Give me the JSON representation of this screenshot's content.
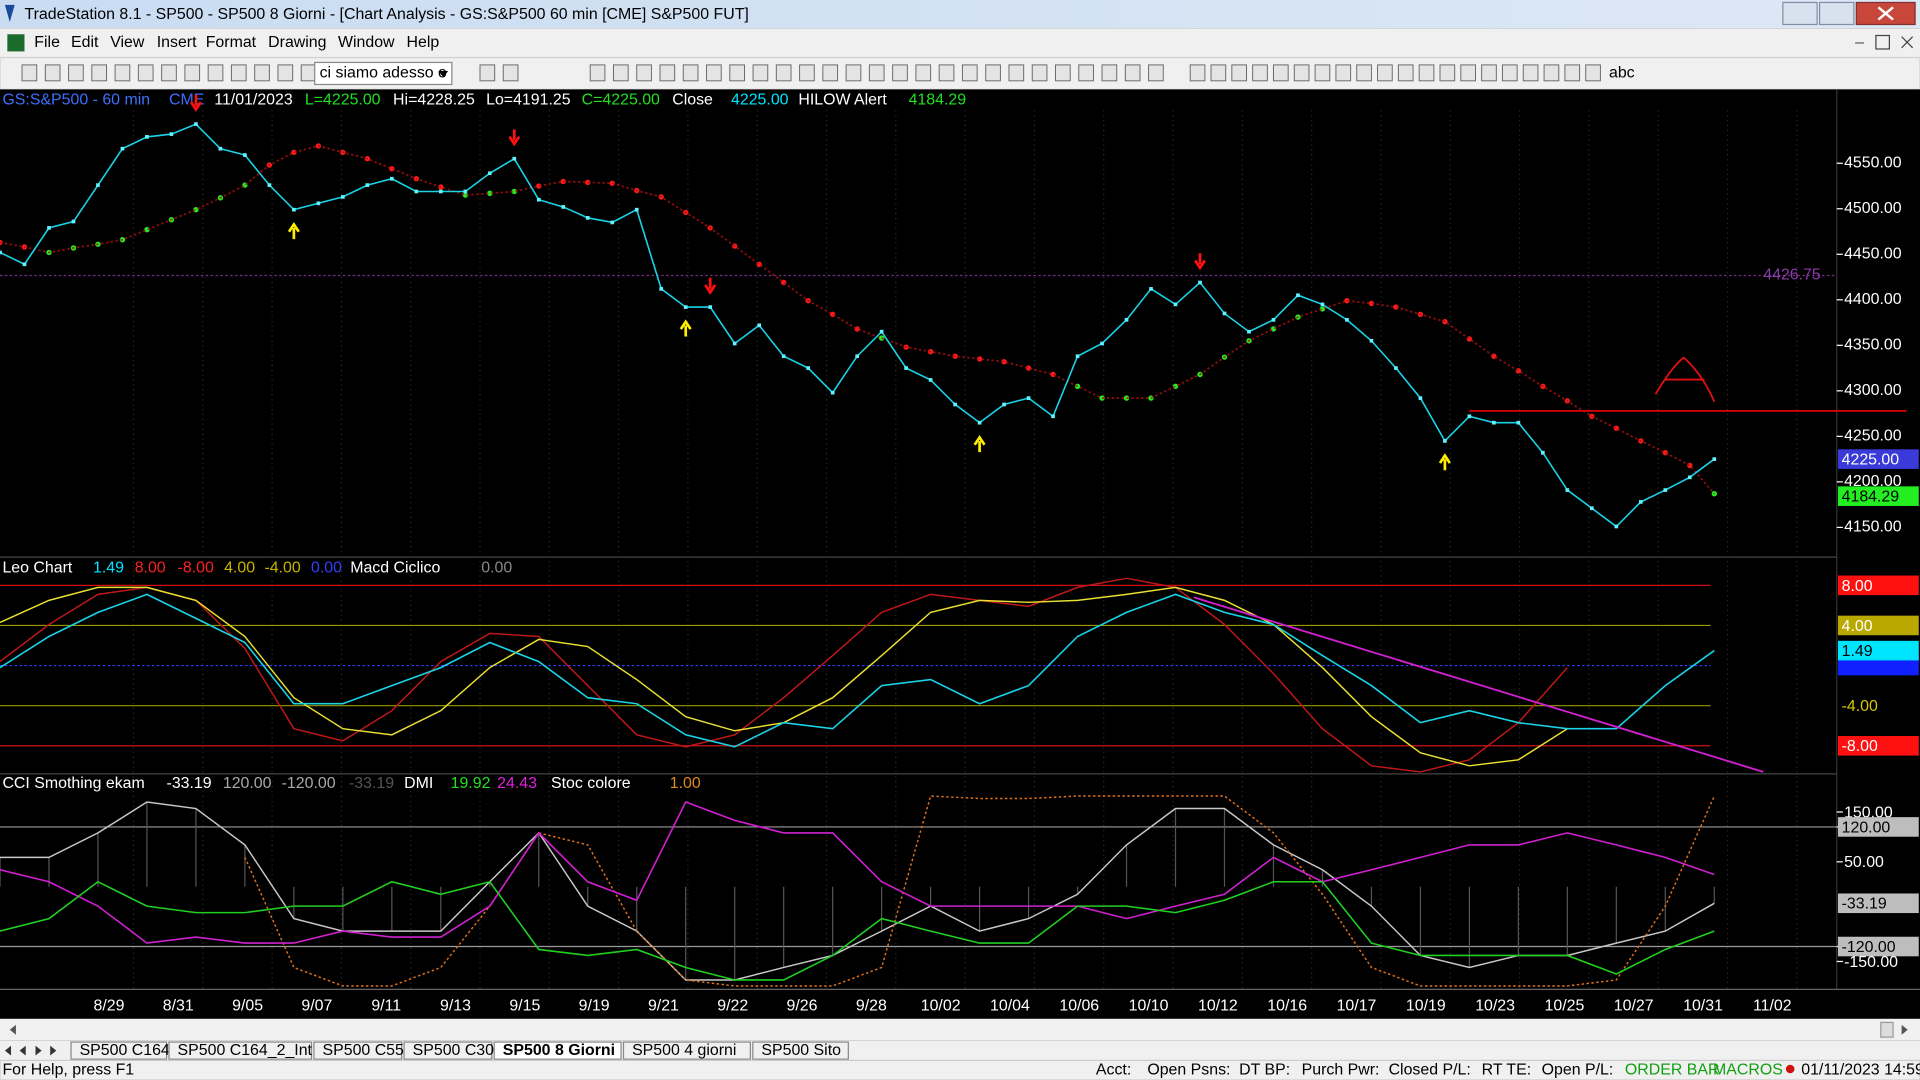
{
  "window": {
    "title": "TradeStation 8.1 - SP500 - SP500 8 Giorni - [Chart Analysis - GS:S&P500  60 min  [CME] S&P500 FUT]"
  },
  "menu": [
    "File",
    "Edit",
    "View",
    "Insert",
    "Format",
    "Drawing",
    "Window",
    "Help"
  ],
  "toolbar": {
    "combo": "ci siamo adesso o",
    "text_tool": "abc"
  },
  "price": {
    "header": [
      "GS:S&P500 - 60 min",
      "CME",
      "11/01/2023",
      "L=4225.00",
      "Hi=4228.25",
      "Lo=4191.25",
      "C=4225.00",
      "Close",
      "4225.00",
      "HILOW Alert",
      "4184.29"
    ],
    "ylim": [
      4120,
      4615
    ],
    "yticks": [
      {
        "value": 4550,
        "label": "4550.00"
      },
      {
        "value": 4500,
        "label": "4500.00"
      },
      {
        "value": 4450,
        "label": "4450.00"
      },
      {
        "value": 4400,
        "label": "4400.00"
      },
      {
        "value": 4350,
        "label": "4350.00"
      },
      {
        "value": 4300,
        "label": "4300.00"
      },
      {
        "value": 4250,
        "label": "4250.00"
      },
      {
        "value": 4200,
        "label": "4200.00"
      },
      {
        "value": 4150,
        "label": "4150.00"
      }
    ],
    "close": [
      4452,
      4439,
      4479,
      4486,
      4526,
      4566,
      4579,
      4582,
      4593,
      4566,
      4559,
      4526,
      4499,
      4506,
      4513,
      4526,
      4533,
      4519,
      4519,
      4519,
      4539,
      4555,
      4510,
      4502,
      4490,
      4485,
      4499,
      4412,
      4392,
      4392,
      4352,
      4372,
      4338,
      4325,
      4298,
      4338,
      4365,
      4325,
      4312,
      4285,
      4265,
      4285,
      4292,
      4272,
      4338,
      4352,
      4378,
      4412,
      4395,
      4419,
      4385,
      4365,
      4378,
      4405,
      4395,
      4378,
      4355,
      4325,
      4292,
      4245,
      4272,
      4265,
      4265,
      4232,
      4191,
      4171,
      4151,
      4178,
      4191,
      4205,
      4225
    ],
    "average": [
      4463,
      4458,
      4452,
      4457,
      4461,
      4466,
      4477,
      4488,
      4499,
      4512,
      4526,
      4548,
      4562,
      4569,
      4562,
      4555,
      4544,
      4533,
      4524,
      4515,
      4517,
      4519,
      4525,
      4530,
      4529,
      4528,
      4520,
      4513,
      4496,
      4479,
      4459,
      4439,
      4419,
      4399,
      4384,
      4368,
      4358,
      4348,
      4343,
      4338,
      4335,
      4332,
      4325,
      4318,
      4305,
      4292,
      4292,
      4292,
      4305,
      4318,
      4337,
      4355,
      4368,
      4381,
      4390,
      4399,
      4396,
      4392,
      4384,
      4376,
      4357,
      4338,
      4322,
      4305,
      4289,
      4272,
      4259,
      4245,
      4232,
      4218,
      4187
    ],
    "level": {
      "value": 4426.75,
      "label": "4426.75"
    },
    "last": {
      "value": 4225,
      "label": "4225.00"
    },
    "alert": {
      "value": 4184.29,
      "label": "4184.29"
    },
    "resistance": 4278,
    "sell_arrows": [
      8,
      21,
      29,
      49
    ],
    "buy_arrows": [
      12,
      28,
      40,
      59
    ]
  },
  "leo": {
    "header": [
      "Leo Chart",
      "1.49",
      "8.00",
      "-8.00",
      "4.00",
      "-4.00",
      "0.00",
      "Macd Ciclico",
      "0.00"
    ],
    "ylim": [
      -10.8,
      10.2
    ],
    "levels": [
      {
        "value": 8,
        "label": "8.00"
      },
      {
        "value": 4,
        "label": "4.00"
      },
      {
        "value": 0,
        "label": "0.00"
      },
      {
        "value": -4,
        "label": "-4.00"
      },
      {
        "value": -8,
        "label": "-8.00"
      }
    ],
    "last": {
      "value": 1.49,
      "label": "1.49"
    },
    "oscillator": [
      -0.2,
      2.9,
      5.3,
      7.1,
      4.7,
      2.3,
      -3.8,
      -3.8,
      -2.0,
      -0.2,
      2.3,
      0.4,
      -3.2,
      -3.8,
      -6.9,
      -8.1,
      -5.7,
      -6.3,
      -2.0,
      -1.4,
      -3.8,
      -2.0,
      2.9,
      5.3,
      7.1,
      5.3,
      4.1,
      1.0,
      -2.0,
      -5.7,
      -4.5,
      -5.7,
      -6.3,
      -6.3,
      -2.0,
      1.49
    ],
    "cycle_slow": [
      4.3,
      6.5,
      7.8,
      7.8,
      6.5,
      2.9,
      -3.2,
      -6.3,
      -6.9,
      -4.5,
      -0.2,
      2.6,
      1.9,
      -1.4,
      -5.1,
      -6.5,
      -5.7,
      -3.2,
      1.0,
      5.3,
      6.5,
      6.3,
      6.5,
      7.1,
      7.8,
      6.5,
      4.1,
      -0.2,
      -5.1,
      -8.7,
      -10.0,
      -9.4,
      -6.3,
      null,
      null,
      null
    ],
    "cycle_fast": [
      0.4,
      4.1,
      7.1,
      7.8,
      6.5,
      1.7,
      -6.3,
      -7.5,
      -4.5,
      0.4,
      3.2,
      2.9,
      -2.0,
      -6.9,
      -8.1,
      -6.9,
      -3.2,
      1.0,
      5.3,
      7.1,
      6.5,
      5.9,
      7.8,
      8.7,
      7.8,
      4.1,
      -0.8,
      -6.3,
      -10.0,
      -10.6,
      -9.4,
      -5.7,
      -0.2,
      null,
      null,
      null
    ],
    "trendline": [
      6.8,
      -10.6
    ]
  },
  "cci": {
    "header": [
      "CCI Smothing ekam",
      "-33.19",
      "120.00",
      "-120.00",
      "-33.19",
      "DMI",
      "19.92",
      "24.43",
      "Stoc colore",
      "1.00"
    ],
    "ylim": [
      -206,
      224
    ],
    "ticks": [
      {
        "value": 150,
        "label": "150.00"
      },
      {
        "value": 120,
        "label": "120.00"
      },
      {
        "value": 50,
        "label": "50.00"
      },
      {
        "value": -120,
        "label": "-120.00"
      },
      {
        "value": -150,
        "label": "-150.00"
      }
    ],
    "guides": [
      120,
      -120
    ],
    "last": {
      "value": -33.19,
      "label": "-33.19"
    },
    "cci": [
      59,
      59,
      108,
      170,
      157,
      84,
      -64,
      -89,
      -89,
      -89,
      10,
      108,
      -39,
      -89,
      -187,
      -187,
      -162,
      -138,
      -89,
      -39,
      -89,
      -64,
      -15,
      84,
      157,
      157,
      84,
      34,
      -39,
      -138,
      -162,
      -138,
      -138,
      -113,
      -89,
      -33.19
    ],
    "dmi_plus": [
      34,
      10,
      -39,
      -113,
      -101,
      -113,
      -113,
      -89,
      -101,
      -101,
      -39,
      108,
      10,
      -27,
      170,
      133,
      108,
      108,
      10,
      -39,
      -39,
      -39,
      -39,
      -64,
      -39,
      -15,
      59,
      10,
      34,
      59,
      84,
      84,
      108,
      84,
      59,
      24.43
    ],
    "dmi_minus": [
      -89,
      -64,
      10,
      -39,
      -52,
      -52,
      -39,
      -39,
      10,
      -15,
      10,
      -126,
      -138,
      -126,
      -162,
      -187,
      -187,
      -138,
      -64,
      -89,
      -113,
      -113,
      -39,
      -39,
      -52,
      -27,
      10,
      10,
      -113,
      -138,
      -138,
      -138,
      -138,
      -175,
      -126,
      -89
    ],
    "stoch": [
      null,
      null,
      null,
      null,
      null,
      59,
      -162,
      -199,
      -199,
      -162,
      -39,
      108,
      84,
      -89,
      -187,
      -199,
      -199,
      -199,
      -162,
      182,
      177,
      177,
      182,
      182,
      182,
      182,
      108,
      -15,
      -162,
      -199,
      -199,
      -199,
      -199,
      -187,
      -39,
      182
    ]
  },
  "dates": [
    "8/29",
    "8/31",
    "9/05",
    "9/07",
    "9/11",
    "9/13",
    "9/15",
    "9/19",
    "9/21",
    "9/22",
    "9/26",
    "9/28",
    "10/02",
    "10/04",
    "10/06",
    "10/10",
    "10/12",
    "10/16",
    "10/17",
    "10/19",
    "10/23",
    "10/25",
    "10/27",
    "10/31",
    "11/02"
  ],
  "tabs": [
    "SP500 C164",
    "SP500 C164_2_Int",
    "SP500 C55",
    "SP500 C30",
    "SP500 8 Giorni",
    "SP500 4 giorni",
    "SP500 Sito"
  ],
  "status": [
    "For Help, press F1",
    "Acct:",
    "Open Psns:",
    "DT BP:",
    "Purch Pwr:",
    "Closed P/L:",
    "RT TE:",
    "Open P/L:",
    "ORDER BAR",
    "MACROS",
    "01/11/2023 14:59"
  ]
}
